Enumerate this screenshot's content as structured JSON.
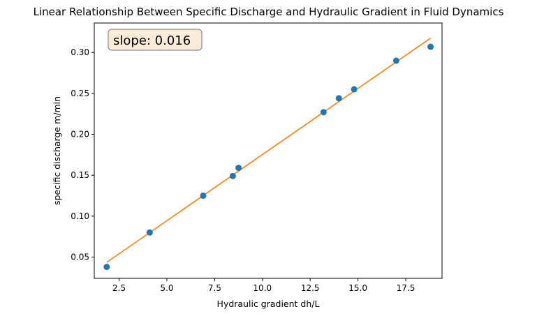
{
  "chart_data": {
    "type": "scatter",
    "title": "Linear Relationship Between Specific Discharge and Hydraulic Gradient in Fluid Dynamics",
    "xlabel": "Hydraulic gradient dh/L",
    "ylabel": "specific discharge m/min",
    "xlim": [
      1.2,
      19.4
    ],
    "ylim": [
      0.024,
      0.336
    ],
    "xticks": [
      2.5,
      5.0,
      7.5,
      10.0,
      12.5,
      15.0,
      17.5
    ],
    "xtick_labels": [
      "2.5",
      "5.0",
      "7.5",
      "10.0",
      "12.5",
      "15.0",
      "17.5"
    ],
    "yticks": [
      0.05,
      0.1,
      0.15,
      0.2,
      0.25,
      0.3
    ],
    "ytick_labels": [
      "0.05",
      "0.10",
      "0.15",
      "0.20",
      "0.25",
      "0.30"
    ],
    "grid": false,
    "annotation": "slope: 0.016",
    "series": [
      {
        "type": "scatter",
        "color": "#1f77b4",
        "x": [
          1.85,
          4.1,
          6.9,
          8.45,
          8.75,
          13.2,
          14.0,
          14.8,
          17.0,
          18.8
        ],
        "y": [
          0.038,
          0.08,
          0.125,
          0.149,
          0.159,
          0.227,
          0.244,
          0.255,
          0.29,
          0.307
        ]
      },
      {
        "type": "line",
        "color": "#ff7f0e",
        "x": [
          1.85,
          18.8
        ],
        "y": [
          0.0435,
          0.3175
        ]
      }
    ]
  }
}
